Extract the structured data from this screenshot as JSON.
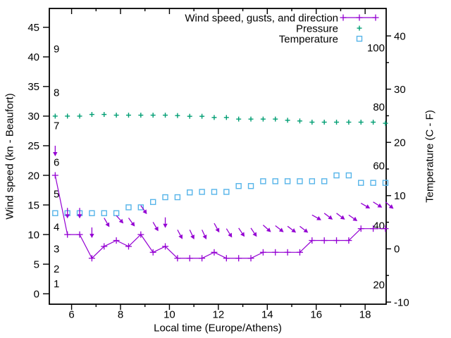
{
  "chart_data": {
    "type": "line",
    "title": "",
    "xlabel": "Local time (Europe/Athens)",
    "ylabel_left": "Wind speed (kn - Beaufort)",
    "ylabel_right": "Temperature (C - F)",
    "x_range": [
      5.09,
      18.86
    ],
    "y_left_range": [
      -1.8,
      48.2
    ],
    "y_right_range": [
      -10,
      45.3
    ],
    "grid": false,
    "legend_position": "top-right-inside",
    "x_ticks": [
      6,
      8,
      10,
      12,
      14,
      16,
      18
    ],
    "x_minor_ticks": [
      7,
      9,
      11,
      13,
      15,
      17
    ],
    "y_left_ticks": [
      0,
      5,
      10,
      15,
      20,
      25,
      30,
      35,
      40,
      45
    ],
    "y_right_ticks": [
      -10,
      0,
      10,
      20,
      30,
      40
    ],
    "y_right_minor_ticks": [
      -5,
      5,
      15,
      25,
      35
    ],
    "beaufort_scale_labels": [
      {
        "label": "1",
        "at_kn": 1.7
      },
      {
        "label": "2",
        "at_kn": 4.2
      },
      {
        "label": "3",
        "at_kn": 7.6
      },
      {
        "label": "4",
        "at_kn": 11.3
      },
      {
        "label": "5",
        "at_kn": 16.9
      },
      {
        "label": "6",
        "at_kn": 22.2
      },
      {
        "label": "7",
        "at_kn": 28.4
      },
      {
        "label": "8",
        "at_kn": 34.0
      },
      {
        "label": "9",
        "at_kn": 41.4
      }
    ],
    "fahrenheit_scale_labels": [
      {
        "label": "20",
        "at_c": -6.7
      },
      {
        "label": "40",
        "at_c": 4.4
      },
      {
        "label": "60",
        "at_c": 15.6
      },
      {
        "label": "80",
        "at_c": 26.7
      },
      {
        "label": "100",
        "at_c": 37.8
      }
    ],
    "legend": [
      {
        "label": "Wind speed, gusts, and direction",
        "color": "#9400d3",
        "sample": "line-plus"
      },
      {
        "label": "Pressure",
        "color": "#009e73",
        "sample": "plus"
      },
      {
        "label": "Temperature",
        "color": "#56b4e9",
        "sample": "square"
      }
    ],
    "colors": {
      "wind": "#9400d3",
      "pressure": "#009e73",
      "temperature": "#56b4e9",
      "axis": "#000000"
    },
    "x": [
      5.33,
      5.83,
      6.33,
      6.83,
      7.33,
      7.83,
      8.33,
      8.83,
      9.33,
      9.83,
      10.33,
      10.83,
      11.33,
      11.83,
      12.33,
      12.83,
      13.33,
      13.83,
      14.33,
      14.83,
      15.33,
      15.83,
      16.33,
      16.83,
      17.33,
      17.83,
      18.33,
      18.83
    ],
    "series": [
      {
        "name": "wind_speed_kn",
        "axis": "left",
        "values": [
          20,
          10,
          10,
          6,
          8,
          9,
          8,
          10,
          7,
          8,
          6,
          6,
          6,
          7,
          6,
          6,
          6,
          7,
          7,
          7,
          7,
          9,
          9,
          9,
          9,
          11,
          11,
          11
        ]
      },
      {
        "name": "wind_gust_kn",
        "axis": "left",
        "values": [
          25,
          14.5,
          14.5,
          11.2,
          12.8,
          13.2,
          12.8,
          14.9,
          12.1,
          12.9,
          10.8,
          10.8,
          10.8,
          11.9,
          11,
          11.1,
          11.1,
          11.6,
          11.5,
          11.4,
          11.4,
          13.3,
          13.6,
          13.6,
          13.3,
          15.3,
          15.5,
          15.5
        ]
      },
      {
        "name": "wind_dir_arrow_tilt_deg_from_down",
        "axis": "none",
        "values": [
          0,
          0,
          0,
          0,
          30,
          42,
          36,
          35,
          30,
          0,
          28,
          25,
          25,
          29,
          32,
          34,
          34,
          48,
          52,
          53,
          52,
          61,
          53,
          53,
          55,
          60,
          58,
          50
        ]
      },
      {
        "name": "pressure_left_axis_units",
        "axis": "left",
        "values": [
          30.0,
          30.0,
          30.0,
          30.28,
          30.28,
          30.16,
          30.16,
          30.16,
          30.16,
          30.16,
          30.09,
          29.97,
          29.97,
          29.77,
          29.77,
          29.5,
          29.5,
          29.5,
          29.5,
          29.3,
          29.18,
          28.98,
          28.98,
          28.98,
          28.98,
          28.98,
          28.98,
          28.79
        ]
      },
      {
        "name": "temperature_c",
        "axis": "right",
        "values": [
          6.7,
          6.7,
          6.7,
          6.7,
          6.7,
          6.7,
          7.8,
          7.8,
          8.8,
          9.7,
          9.7,
          10.6,
          10.7,
          10.7,
          10.7,
          11.8,
          11.8,
          12.7,
          12.7,
          12.7,
          12.7,
          12.7,
          12.7,
          13.8,
          13.8,
          12.4,
          12.4,
          12.4
        ]
      }
    ]
  }
}
